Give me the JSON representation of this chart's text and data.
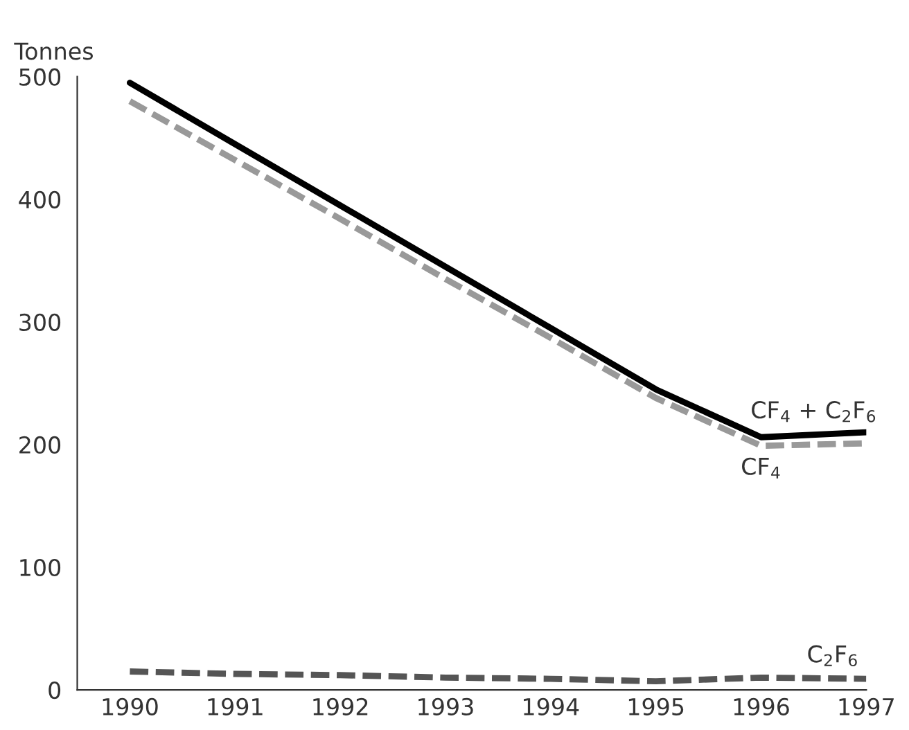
{
  "chart_data": {
    "type": "line",
    "ylabel": "Tonnes",
    "x": [
      1990,
      1991,
      1992,
      1993,
      1994,
      1995,
      1996,
      1997
    ],
    "xlim": [
      1989.5,
      1997
    ],
    "xticks": [
      1990,
      1991,
      1992,
      1993,
      1994,
      1995,
      1996,
      1997
    ],
    "ylim": [
      0,
      500
    ],
    "yticks": [
      0,
      100,
      200,
      300,
      400,
      500
    ],
    "grid": false,
    "legend": false,
    "marker": "none",
    "series": [
      {
        "name": "CF$_{4}$ + C$_{2}$F$_{6}$",
        "color": "#000000",
        "line_style": "solid",
        "values": [
          495,
          445,
          395,
          345,
          295,
          245,
          206,
          210
        ]
      },
      {
        "name": "CF$_{4}$",
        "color": "#999999",
        "line_style": "dashed",
        "values": [
          480,
          432,
          384,
          335,
          287,
          238,
          199,
          201
        ]
      },
      {
        "name": "C$_{2}$F$_{6}$",
        "color": "#555555",
        "line_style": "dashed",
        "values": [
          15,
          13,
          12,
          10,
          9,
          7,
          10,
          9
        ]
      }
    ]
  }
}
